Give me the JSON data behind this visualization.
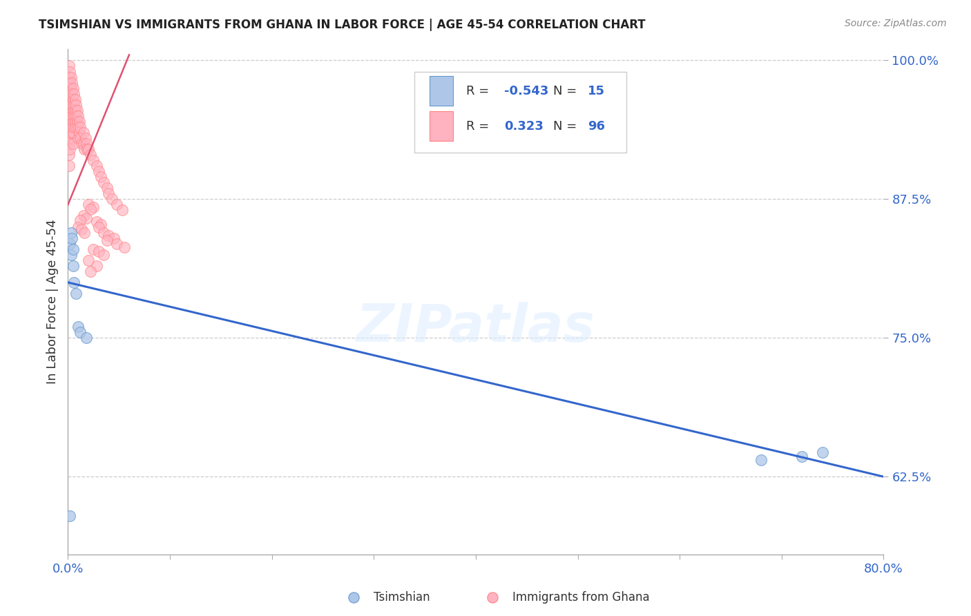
{
  "title": "TSIMSHIAN VS IMMIGRANTS FROM GHANA IN LABOR FORCE | AGE 45-54 CORRELATION CHART",
  "source": "Source: ZipAtlas.com",
  "ylabel": "In Labor Force | Age 45-54",
  "x_min": 0.0,
  "x_max": 0.8,
  "y_min": 0.555,
  "y_max": 1.01,
  "y_ticks": [
    0.625,
    0.75,
    0.875,
    1.0
  ],
  "y_tick_labels": [
    "62.5%",
    "75.0%",
    "87.5%",
    "100.0%"
  ],
  "blue_scatter_color": "#AEC6E8",
  "blue_edge_color": "#6699CC",
  "pink_scatter_color": "#FFB3C1",
  "pink_edge_color": "#FF8080",
  "trend_blue_color": "#3366CC",
  "trend_pink_color": "#E05070",
  "watermark": "ZIPatlas",
  "tsimshian_x": [
    0.002,
    0.003,
    0.003,
    0.004,
    0.005,
    0.005,
    0.006,
    0.008,
    0.01,
    0.012,
    0.018,
    0.68,
    0.72,
    0.74,
    0.002
  ],
  "tsimshian_y": [
    0.835,
    0.845,
    0.825,
    0.84,
    0.815,
    0.83,
    0.8,
    0.79,
    0.76,
    0.755,
    0.75,
    0.64,
    0.643,
    0.647,
    0.59
  ],
  "ghana_x": [
    0.001,
    0.001,
    0.001,
    0.001,
    0.001,
    0.001,
    0.001,
    0.001,
    0.001,
    0.001,
    0.002,
    0.002,
    0.002,
    0.002,
    0.002,
    0.002,
    0.002,
    0.002,
    0.003,
    0.003,
    0.003,
    0.003,
    0.003,
    0.003,
    0.004,
    0.004,
    0.004,
    0.004,
    0.004,
    0.005,
    0.005,
    0.005,
    0.005,
    0.005,
    0.005,
    0.006,
    0.006,
    0.006,
    0.006,
    0.007,
    0.007,
    0.007,
    0.008,
    0.008,
    0.008,
    0.009,
    0.009,
    0.01,
    0.01,
    0.01,
    0.011,
    0.011,
    0.012,
    0.012,
    0.013,
    0.015,
    0.015,
    0.016,
    0.017,
    0.018,
    0.019,
    0.02,
    0.022,
    0.025,
    0.028,
    0.03,
    0.032,
    0.035,
    0.038,
    0.04,
    0.043,
    0.048,
    0.053,
    0.02,
    0.025,
    0.022,
    0.015,
    0.018,
    0.012,
    0.01,
    0.013,
    0.016,
    0.028,
    0.032,
    0.03,
    0.035,
    0.04,
    0.045,
    0.038,
    0.048,
    0.055,
    0.025,
    0.03,
    0.035,
    0.02,
    0.028,
    0.022
  ],
  "ghana_y": [
    0.995,
    0.985,
    0.975,
    0.965,
    0.955,
    0.945,
    0.935,
    0.925,
    0.915,
    0.905,
    0.99,
    0.98,
    0.97,
    0.96,
    0.95,
    0.94,
    0.93,
    0.92,
    0.985,
    0.975,
    0.965,
    0.955,
    0.945,
    0.935,
    0.98,
    0.97,
    0.96,
    0.95,
    0.94,
    0.975,
    0.965,
    0.955,
    0.945,
    0.935,
    0.925,
    0.97,
    0.96,
    0.95,
    0.94,
    0.965,
    0.955,
    0.945,
    0.96,
    0.95,
    0.94,
    0.955,
    0.945,
    0.95,
    0.94,
    0.93,
    0.945,
    0.935,
    0.94,
    0.93,
    0.925,
    0.935,
    0.925,
    0.92,
    0.93,
    0.925,
    0.92,
    0.92,
    0.915,
    0.91,
    0.905,
    0.9,
    0.895,
    0.89,
    0.885,
    0.88,
    0.875,
    0.87,
    0.865,
    0.87,
    0.868,
    0.866,
    0.86,
    0.858,
    0.856,
    0.85,
    0.848,
    0.845,
    0.855,
    0.852,
    0.85,
    0.845,
    0.842,
    0.84,
    0.838,
    0.835,
    0.832,
    0.83,
    0.828,
    0.825,
    0.82,
    0.815,
    0.81
  ],
  "trend_blue_x0": 0.0,
  "trend_blue_y0": 0.8,
  "trend_blue_x1": 0.8,
  "trend_blue_y1": 0.625,
  "trend_pink_x0": 0.0,
  "trend_pink_y0": 0.87,
  "trend_pink_x1": 0.06,
  "trend_pink_y1": 1.005
}
